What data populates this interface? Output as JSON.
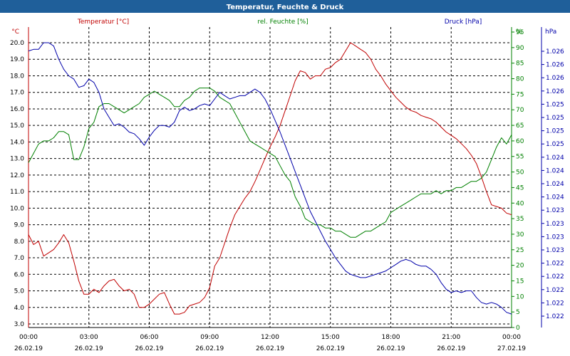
{
  "window": {
    "title": "Temperatur, Feuchte & Druck"
  },
  "chart_data": {
    "type": "line",
    "title": "Temperatur, Feuchte & Druck",
    "grid": true,
    "x_ticks": [
      {
        "time": "00:00",
        "date": "26.02.19"
      },
      {
        "time": "03:00",
        "date": "26.02.19"
      },
      {
        "time": "06:00",
        "date": "26.02.19"
      },
      {
        "time": "09:00",
        "date": "26.02.19"
      },
      {
        "time": "12:00",
        "date": "26.02.19"
      },
      {
        "time": "15:00",
        "date": "26.02.19"
      },
      {
        "time": "18:00",
        "date": "26.02.19"
      },
      {
        "time": "21:00",
        "date": "26.02.19"
      },
      {
        "time": "00:00",
        "date": "27.02.19"
      }
    ],
    "axes": {
      "temperature": {
        "label": "Temperatur [°C]",
        "unit": "°C",
        "color": "#c00000",
        "ylim": [
          3.0,
          20.0
        ],
        "tick_labels": [
          "3.0",
          "4.0",
          "5.0",
          "6.0",
          "7.0",
          "8.0",
          "9.0",
          "10.0",
          "11.0",
          "12.0",
          "13.0",
          "14.0",
          "15.0",
          "16.0",
          "17.0",
          "18.0",
          "19.0",
          "20.0"
        ]
      },
      "humidity": {
        "label": "rel. Feuchte [%]",
        "unit": "%",
        "color": "#008000",
        "ylim": [
          0,
          95
        ],
        "tick_labels": [
          "0",
          "5",
          "10",
          "15",
          "20",
          "25",
          "30",
          "35",
          "40",
          "45",
          "50",
          "55",
          "60",
          "65",
          "70",
          "75",
          "80",
          "85",
          "90",
          "95"
        ]
      },
      "pressure": {
        "label": "Druck [hPa]",
        "unit": "hPa",
        "color": "#0000aa",
        "tick_labels": [
          "1.022",
          "1.022",
          "1.022",
          "1.022",
          "1.022",
          "1.023",
          "1.023",
          "1.023",
          "1.023",
          "1.024",
          "1.024",
          "1.024",
          "1.024",
          "1.025",
          "1.025",
          "1.025",
          "1.025",
          "1.026",
          "1.026",
          "1.026",
          "1.026"
        ]
      }
    },
    "series": [
      {
        "name": "Temperatur",
        "axis": "temperature",
        "color": "#c00000",
        "x": [
          0,
          0.25,
          0.5,
          0.75,
          1,
          1.25,
          1.5,
          1.75,
          2,
          2.25,
          2.5,
          2.75,
          3,
          3.25,
          3.5,
          3.75,
          4,
          4.25,
          4.5,
          4.75,
          5,
          5.25,
          5.5,
          5.75,
          6,
          6.25,
          6.5,
          6.75,
          7,
          7.25,
          7.5,
          7.75,
          8,
          8.25,
          8.5,
          8.75,
          9,
          9.25,
          9.5,
          9.75,
          10,
          10.25,
          10.5,
          10.75,
          11,
          11.25,
          11.5,
          11.75,
          12,
          12.25,
          12.5,
          12.75,
          13,
          13.25,
          13.5,
          13.75,
          14,
          14.25,
          14.5,
          14.75,
          15,
          15.25,
          15.5,
          15.75,
          16,
          16.25,
          16.5,
          16.75,
          17,
          17.25,
          17.5,
          17.75,
          18,
          18.25,
          18.5,
          18.75,
          19,
          19.25,
          19.5,
          19.75,
          20,
          20.25,
          20.5,
          20.75,
          21,
          21.25,
          21.5,
          21.75,
          22,
          22.25,
          22.5,
          22.75,
          23,
          23.25,
          23.5,
          23.75,
          24
        ],
        "values": [
          8.4,
          7.8,
          8.0,
          7.1,
          7.3,
          7.5,
          7.9,
          8.4,
          7.9,
          6.8,
          5.6,
          4.8,
          4.8,
          5.1,
          4.9,
          5.3,
          5.6,
          5.7,
          5.3,
          5.0,
          5.1,
          4.8,
          4.0,
          4.0,
          4.2,
          4.5,
          4.8,
          4.9,
          4.2,
          3.6,
          3.6,
          3.7,
          4.1,
          4.2,
          4.3,
          4.6,
          5.2,
          6.5,
          7.0,
          7.9,
          8.8,
          9.6,
          10.1,
          10.6,
          11.0,
          11.6,
          12.3,
          13.0,
          13.7,
          14.3,
          15.0,
          15.9,
          16.8,
          17.7,
          18.3,
          18.2,
          17.8,
          18.0,
          18.0,
          18.4,
          18.5,
          18.8,
          19.0,
          19.5,
          20.0,
          19.8,
          19.6,
          19.4,
          19.0,
          18.4,
          18.0,
          17.5,
          17.1,
          16.7,
          16.4,
          16.1,
          15.9,
          15.8,
          15.6,
          15.5,
          15.4,
          15.2,
          14.9,
          14.6,
          14.4,
          14.2,
          13.9,
          13.6,
          13.2,
          12.7,
          11.9,
          11.0,
          10.2,
          10.1,
          10.0,
          9.7,
          9.6
        ]
      },
      {
        "name": "rel. Feuchte",
        "axis": "humidity",
        "color": "#008000",
        "x": [
          0,
          0.25,
          0.5,
          0.75,
          1,
          1.25,
          1.5,
          1.75,
          2,
          2.25,
          2.5,
          2.75,
          3,
          3.25,
          3.5,
          3.75,
          4,
          4.25,
          4.5,
          4.75,
          5,
          5.25,
          5.5,
          5.75,
          6,
          6.25,
          6.5,
          6.75,
          7,
          7.25,
          7.5,
          7.75,
          8,
          8.25,
          8.5,
          8.75,
          9,
          9.25,
          9.5,
          9.75,
          10,
          10.25,
          10.5,
          10.75,
          11,
          11.25,
          11.5,
          11.75,
          12,
          12.25,
          12.5,
          12.75,
          13,
          13.25,
          13.5,
          13.75,
          14,
          14.25,
          14.5,
          14.75,
          15,
          15.25,
          15.5,
          15.75,
          16,
          16.25,
          16.5,
          16.75,
          17,
          17.25,
          17.5,
          17.75,
          18,
          18.25,
          18.5,
          18.75,
          19,
          19.25,
          19.5,
          19.75,
          20,
          20.25,
          20.5,
          20.75,
          21,
          21.25,
          21.5,
          21.75,
          22,
          22.25,
          22.5,
          22.75,
          23,
          23.25,
          23.5,
          23.75,
          24
        ],
        "values": [
          53,
          56,
          59,
          60,
          60,
          61,
          63,
          63,
          62,
          54,
          54,
          58,
          64,
          66,
          71,
          72,
          72,
          71,
          70,
          69,
          70,
          71,
          72,
          74,
          75,
          76,
          75,
          74,
          73,
          71,
          71,
          73,
          74,
          76,
          77,
          77,
          77,
          76,
          74,
          73,
          72,
          69,
          66,
          63,
          60,
          59,
          58,
          57,
          56,
          55,
          52,
          49,
          47,
          42,
          39,
          35,
          34,
          33,
          33,
          32,
          32,
          31,
          31,
          30,
          29,
          29,
          30,
          31,
          31,
          32,
          33,
          34,
          37,
          38,
          39,
          40,
          41,
          42,
          43,
          43,
          43,
          44,
          43,
          44,
          44,
          45,
          45,
          46,
          47,
          47,
          48,
          50,
          54,
          58,
          61,
          59,
          62
        ]
      },
      {
        "name": "Druck",
        "axis": "pressure",
        "color": "#0000aa",
        "x": [
          0,
          0.25,
          0.5,
          0.75,
          1,
          1.25,
          1.5,
          1.75,
          2,
          2.25,
          2.5,
          2.75,
          3,
          3.25,
          3.5,
          3.75,
          4,
          4.25,
          4.5,
          4.75,
          5,
          5.25,
          5.5,
          5.75,
          6,
          6.25,
          6.5,
          6.75,
          7,
          7.25,
          7.5,
          7.75,
          8,
          8.25,
          8.5,
          8.75,
          9,
          9.25,
          9.5,
          9.75,
          10,
          10.25,
          10.5,
          10.75,
          11,
          11.25,
          11.5,
          11.75,
          12,
          12.25,
          12.5,
          12.75,
          13,
          13.25,
          13.5,
          13.75,
          14,
          14.25,
          14.5,
          14.75,
          15,
          15.25,
          15.5,
          15.75,
          16,
          16.25,
          16.5,
          16.75,
          17,
          17.25,
          17.5,
          17.75,
          18,
          18.25,
          18.5,
          18.75,
          19,
          19.25,
          19.5,
          19.75,
          20,
          20.25,
          20.5,
          20.75,
          21,
          21.25,
          21.5,
          21.75,
          22,
          22.25,
          22.5,
          22.75,
          23,
          23.25,
          23.5,
          23.75,
          24
        ],
        "values": [
          19.5,
          19.6,
          19.6,
          20.0,
          20.0,
          19.8,
          19.0,
          18.4,
          18.0,
          17.8,
          17.3,
          17.4,
          17.8,
          17.6,
          17.0,
          16.0,
          15.5,
          15.0,
          15.1,
          14.9,
          14.6,
          14.5,
          14.2,
          13.8,
          14.3,
          14.7,
          15.0,
          15.0,
          14.9,
          15.2,
          15.9,
          16.1,
          15.9,
          16.0,
          16.2,
          16.3,
          16.2,
          16.6,
          17.0,
          16.8,
          16.6,
          16.7,
          16.8,
          16.8,
          17.0,
          17.2,
          17.0,
          16.6,
          16.0,
          15.3,
          14.6,
          13.8,
          13.0,
          12.2,
          11.4,
          10.6,
          9.8,
          9.2,
          8.6,
          8.0,
          7.5,
          7.0,
          6.6,
          6.2,
          6.0,
          5.9,
          5.8,
          5.8,
          5.9,
          6.0,
          6.1,
          6.2,
          6.4,
          6.6,
          6.8,
          6.9,
          6.8,
          6.6,
          6.5,
          6.5,
          6.3,
          6.0,
          5.5,
          5.1,
          4.9,
          5.0,
          4.9,
          5.0,
          5.0,
          4.6,
          4.3,
          4.2,
          4.3,
          4.2,
          4.0,
          3.7,
          3.6
        ]
      }
    ]
  }
}
